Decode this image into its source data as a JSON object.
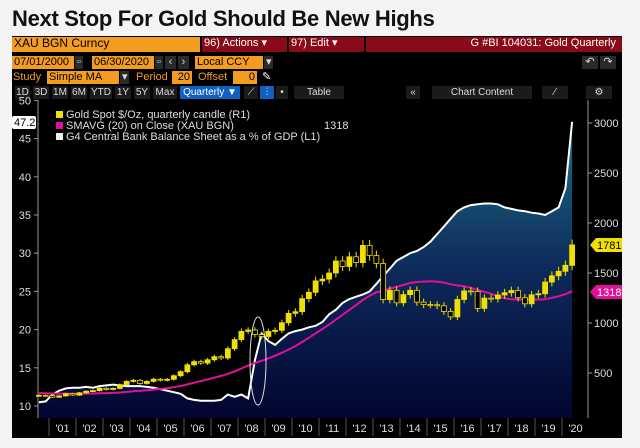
{
  "title": "Next Stop For Gold Should Be New Highs",
  "header": {
    "ticker": "XAU BGN Curncy",
    "actions": "96) Actions ▾",
    "edit": "97) Edit ▾",
    "chart_id": "G #BI 104031: Gold Quarterly"
  },
  "range": {
    "start": "07/01/2000",
    "end": "06/30/2020",
    "currency": "Local CCY"
  },
  "study": {
    "label": "Study",
    "type": "Simple MA",
    "period_label": "Period",
    "period": "20",
    "offset_label": "Offset",
    "offset": "0"
  },
  "toolbar": {
    "periods": [
      "1D",
      "3D",
      "1M",
      "6M",
      "YTD",
      "1Y",
      "5Y",
      "Max"
    ],
    "frequency": "Quarterly ▼",
    "table": "Table",
    "chart_content": "Chart Content"
  },
  "chart_data": {
    "type": "line",
    "title": "Gold Quarterly",
    "x_tick_labels": [
      "'01",
      "'02",
      "'03",
      "'04",
      "'05",
      "'06",
      "'07",
      "'08",
      "'09",
      "'10",
      "'11",
      "'12",
      "'13",
      "'14",
      "'15",
      "'16",
      "'17",
      "'18",
      "'19",
      "'20"
    ],
    "left_axis": {
      "ticks": [
        "50",
        "45",
        "40",
        "35",
        "30",
        "25",
        "20",
        "15",
        "10"
      ],
      "range": [
        10,
        50
      ],
      "current": "47.2"
    },
    "right_axis": {
      "ticks": [
        "3000",
        "2500",
        "2000",
        "1500",
        "1000",
        "500"
      ],
      "range": [
        0,
        3000
      ]
    },
    "legend": [
      "Gold Spot $/Oz, quarterly candle (R1)",
      "SMAVG (20)  on Close (XAU BGN)",
      "G4 Central Bank Balance Sheet as a % of GDP (L1)"
    ],
    "legend_value": "1318",
    "tags": {
      "gold_last": "1781",
      "sma_last": "1318"
    },
    "colors": {
      "gold": "#f0e000",
      "sma": "#e0109a",
      "balance": "#ffffff"
    },
    "x_start": "2000Q3",
    "series": [
      {
        "name": "Gold Spot close",
        "axis": "right",
        "values": [
          277,
          274,
          258,
          271,
          293,
          279,
          302,
          318,
          324,
          347,
          336,
          346,
          384,
          416,
          427,
          395,
          416,
          438,
          428,
          437,
          473,
          513,
          582,
          614,
          599,
          632,
          663,
          650,
          743,
          834,
          916,
          930,
          884,
          865,
          916,
          927,
          1003,
          1096,
          1113,
          1244,
          1307,
          1421,
          1439,
          1500,
          1620,
          1566,
          1662,
          1604,
          1776,
          1675,
          1595,
          1234,
          1327,
          1202,
          1284,
          1327,
          1208,
          1184,
          1183,
          1172,
          1115,
          1061,
          1235,
          1321,
          1316,
          1146,
          1249,
          1242,
          1280,
          1303,
          1325,
          1253,
          1192,
          1282,
          1292,
          1409,
          1472,
          1517,
          1577,
          1781
        ]
      },
      {
        "name": "SMAVG 20",
        "axis": "right",
        "seed": 300
      },
      {
        "name": "G4 CB Balance Sheet % GDP",
        "axis": "left",
        "values": [
          10.5,
          10.6,
          11.5,
          12.0,
          12.3,
          12.4,
          12.4,
          12.5,
          12.4,
          12.6,
          12.7,
          12.8,
          12.7,
          12.6,
          12.6,
          12.6,
          12.5,
          12.4,
          12.2,
          12.0,
          11.8,
          11.6,
          11.0,
          10.8,
          10.7,
          10.7,
          10.7,
          10.8,
          11.5,
          11.2,
          11.5,
          11.0,
          16.0,
          19.5,
          18.5,
          18.0,
          18.8,
          19.5,
          19.8,
          20.0,
          20.3,
          20.5,
          21.0,
          22.0,
          22.6,
          23.5,
          24.0,
          24.3,
          24.6,
          25.0,
          26.0,
          27.0,
          28.0,
          29.0,
          29.5,
          30.0,
          30.3,
          30.8,
          31.5,
          32.5,
          33.5,
          34.5,
          35.5,
          36.0,
          36.3,
          36.4,
          36.5,
          36.5,
          36.4,
          36.0,
          35.8,
          35.6,
          35.5,
          35.3,
          35.2,
          35.0,
          35.5,
          36.0,
          38.5,
          47.2
        ]
      }
    ]
  }
}
